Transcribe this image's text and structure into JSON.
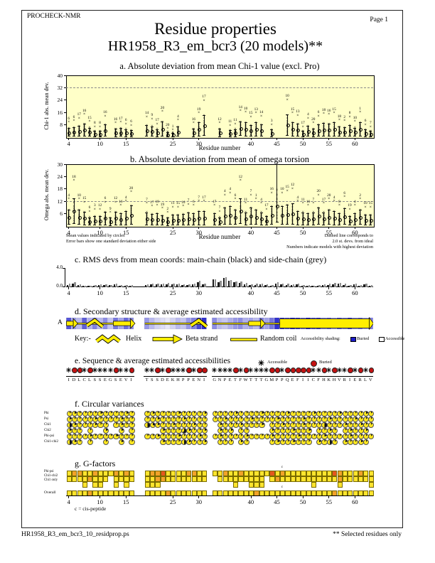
{
  "colors": {
    "plot_bg": "#ffffc8",
    "dashed_line": "#8a8a8a",
    "buried_blue": "#1c1cc8",
    "buried_red": "#c41212",
    "variance_yellow": "#ffe81e",
    "ss_yellow": "#ffee00",
    "g_yellow": "#ffe42e",
    "g_orange": "#f2a22a",
    "g_red": "#e4571f",
    "main_chain": "#1a1a1a",
    "side_chain": "#8f8f8f"
  },
  "page": {
    "header": "PROCHECK-NMR",
    "page_label": "Page  1",
    "title": "Residue properties",
    "subtitle": "HR1958_R3_em_bcr3 (20 models)**",
    "footer_left": "HR1958_R3_em_bcr3_10_residprop.ps",
    "footer_right": "** Selected residues only"
  },
  "axis": {
    "ticks": [
      4,
      10,
      15,
      25,
      30,
      40,
      45,
      50,
      55,
      60
    ],
    "xlabel": "Residue number"
  },
  "segments": [
    {
      "start": 4,
      "seq": "IDLCLSSEGSEVI"
    },
    {
      "start": 20,
      "seq": "TSSDEKHPPENI"
    },
    {
      "start": 33,
      "seq": "GNPETFWTTTGMPPQEFIICFHKHVRIERLV"
    }
  ],
  "chart_data": [
    {
      "id": "a",
      "type": "scatter",
      "title": "a. Absolute deviation from mean Chi-1 value (excl. Pro)",
      "ylabel": "Chi-1 abs. mean dev.",
      "xlabel": "Residue number",
      "ylim": [
        0,
        40
      ],
      "yticks": [
        8,
        16,
        24,
        32,
        40
      ],
      "dashed_y": 32,
      "points_format": [
        "residue",
        "model_with_highest_deviation",
        "peak_abs_mean_dev"
      ],
      "points": [
        [
          4,
          "6",
          9.5
        ],
        [
          5,
          "6",
          10.5
        ],
        [
          6,
          "17",
          12
        ],
        [
          7,
          "16",
          14.5
        ],
        [
          8,
          "15",
          10
        ],
        [
          9,
          "8",
          6.5
        ],
        [
          10,
          "8",
          6.5
        ],
        [
          11,
          "16",
          13.5
        ],
        [
          13,
          "16",
          9
        ],
        [
          14,
          "17",
          9.5
        ],
        [
          15,
          "6",
          8.5
        ],
        [
          16,
          "6",
          7.5
        ],
        [
          20,
          "14",
          13
        ],
        [
          21,
          "9",
          11.5
        ],
        [
          22,
          "17",
          8.5
        ],
        [
          23,
          "20",
          16.5
        ],
        [
          24,
          "20",
          5.5
        ],
        [
          25,
          "1",
          4.5
        ],
        [
          26,
          "4",
          11
        ],
        [
          29,
          "16",
          9
        ],
        [
          30,
          "19",
          15.5
        ],
        [
          31,
          "17",
          23.5
        ],
        [
          34,
          "12",
          9
        ],
        [
          36,
          "11",
          7.5
        ],
        [
          37,
          "11",
          8.5
        ],
        [
          38,
          "14",
          17
        ],
        [
          39,
          "10",
          16
        ],
        [
          40,
          "15",
          13
        ],
        [
          41,
          "13",
          15.5
        ],
        [
          42,
          "14",
          13.5
        ],
        [
          44,
          "3",
          8
        ],
        [
          47,
          "10",
          24
        ],
        [
          48,
          "15",
          15.5
        ],
        [
          49,
          "13",
          14
        ],
        [
          50,
          "17",
          6.5
        ],
        [
          51,
          "4",
          12
        ],
        [
          52,
          "20",
          9
        ],
        [
          53,
          "6",
          13.5
        ],
        [
          54,
          "18",
          15
        ],
        [
          55,
          "16",
          14.5
        ],
        [
          56,
          "15",
          15.5
        ],
        [
          57,
          "18",
          11
        ],
        [
          58,
          "2",
          10.5
        ],
        [
          59,
          "8",
          13
        ],
        [
          60,
          "10",
          10
        ],
        [
          61,
          "1",
          16
        ],
        [
          62,
          "6",
          8
        ],
        [
          63,
          "7",
          6.5
        ]
      ]
    },
    {
      "id": "b",
      "type": "scatter",
      "title": "b. Absolute deviation from mean of omega torsion",
      "ylabel": "Omega abs. mean dev.",
      "xlabel": "Residue number",
      "ylim": [
        0,
        30
      ],
      "yticks": [
        6,
        12,
        18,
        24,
        30
      ],
      "dashed_y": 12,
      "points": [
        [
          4,
          "4",
          13
        ],
        [
          5,
          "18",
          22
        ],
        [
          6,
          "10",
          13
        ],
        [
          7,
          "15",
          11.5
        ],
        [
          8,
          "6",
          7
        ],
        [
          9,
          "3",
          8
        ],
        [
          10,
          "12",
          8
        ],
        [
          11,
          "6",
          11.5
        ],
        [
          12,
          "9",
          6.5
        ],
        [
          13,
          "12",
          11.5
        ],
        [
          14,
          "16",
          10
        ],
        [
          15,
          "4",
          12
        ],
        [
          16,
          "20",
          16.5
        ],
        [
          20,
          "7",
          11
        ],
        [
          21,
          "17",
          9.5
        ],
        [
          22,
          "18",
          10
        ],
        [
          23,
          "19",
          8.5
        ],
        [
          24,
          "2",
          6.5
        ],
        [
          25,
          "11",
          9
        ],
        [
          26,
          "15",
          9
        ],
        [
          27,
          "16",
          9.5
        ],
        [
          28,
          "7",
          10.5
        ],
        [
          29,
          "6",
          10
        ],
        [
          30,
          "7",
          12
        ],
        [
          31,
          "17",
          12
        ],
        [
          33,
          "17",
          10
        ],
        [
          34,
          "7",
          7
        ],
        [
          35,
          "4",
          15
        ],
        [
          36,
          "4",
          16
        ],
        [
          37,
          "6",
          13
        ],
        [
          38,
          "12",
          22
        ],
        [
          39,
          "11",
          11
        ],
        [
          40,
          "7",
          15
        ],
        [
          41,
          "1",
          13
        ],
        [
          42,
          "4",
          11
        ],
        [
          43,
          "17",
          8
        ],
        [
          44,
          "16",
          16
        ],
        [
          45,
          "",
          30
        ],
        [
          46,
          "10",
          16
        ],
        [
          47,
          "15",
          17
        ],
        [
          48,
          "12",
          18
        ],
        [
          49,
          "4",
          12
        ],
        [
          50,
          "11",
          11
        ],
        [
          51,
          "16",
          10
        ],
        [
          52,
          "7",
          11
        ],
        [
          53,
          "20",
          15
        ],
        [
          54,
          "17",
          11
        ],
        [
          55,
          "20",
          13
        ],
        [
          56,
          "4",
          12
        ],
        [
          57,
          "8",
          10
        ],
        [
          58,
          "6",
          14
        ],
        [
          59,
          "19",
          8
        ],
        [
          60,
          "4",
          10
        ],
        [
          61,
          "2",
          13
        ],
        [
          62,
          "10",
          9
        ],
        [
          63,
          "15",
          9
        ]
      ],
      "notes_left": [
        "Mean values indicated by circles",
        "Error bars show one standard deviation either side"
      ],
      "notes_right": [
        "Dashed line corresponds to",
        "2.0 st. devs. from ideal",
        "Numbers indicate models with highest deviation"
      ]
    },
    {
      "id": "c",
      "type": "bar",
      "title": "c. RMS devs from mean coords: main-chain (black) and side-chain (grey)",
      "ylim": [
        0,
        4
      ],
      "ytick_top": "4.0",
      "ytick_bottom": "0.0",
      "main": [
        [
          0.5,
          0.8,
          0.5,
          0.3,
          0.25,
          0.3,
          0.45,
          0.5,
          0.4,
          0.55,
          0.35,
          0.3,
          0.35
        ],
        [
          0.5,
          0.6,
          0.55,
          0.6,
          0.65,
          0.55,
          0.6,
          0.5,
          0.45,
          0.55,
          1.0,
          0.55
        ],
        [
          1.6,
          1.0,
          1.9,
          1.3,
          1.05,
          0.95,
          0.65,
          0.45,
          0.5,
          0.6,
          0.4,
          0.35,
          0.8,
          0.6,
          0.5,
          0.45,
          0.6,
          0.35,
          0.3,
          0.28,
          0.35,
          0.45,
          0.5,
          0.6,
          0.7,
          0.5,
          0.3,
          0.6,
          0.3,
          0.55,
          0.3
        ]
      ],
      "side": [
        [
          0.7,
          1.0,
          0.6,
          0.35,
          0.3,
          0.45,
          0.6,
          0.65,
          0.5,
          0.7,
          0.5,
          0.4,
          0.5
        ],
        [
          0.65,
          0.75,
          0.7,
          0.75,
          0.85,
          0.7,
          0.75,
          0.65,
          0.55,
          0.7,
          1.3,
          0.7
        ],
        [
          1.6,
          1.3,
          2.1,
          1.5,
          1.25,
          1.15,
          0.85,
          0.55,
          0.7,
          0.8,
          0.55,
          0.45,
          1.0,
          0.8,
          0.7,
          0.6,
          0.8,
          0.45,
          0.4,
          0.35,
          0.5,
          0.65,
          0.7,
          0.85,
          0.95,
          0.7,
          0.45,
          0.8,
          0.45,
          0.75,
          0.45
        ]
      ]
    },
    {
      "id": "d",
      "type": "secondary-structure",
      "title": "d. Secondary structure & average estimated accessibility",
      "chain_label": "A",
      "key_label": "Key:-",
      "helix_label": "Helix",
      "strand_label": "Beta strand",
      "coil_label": "Random coil",
      "shading_label": "Accessibility shading:",
      "buried_label": "Buried",
      "accessible_label": "Accessible",
      "helices": [
        [
          8,
          10
        ],
        [
          29,
          31
        ]
      ],
      "strands": [
        [
          4,
          5
        ],
        [
          13,
          16
        ],
        [
          40,
          42
        ]
      ],
      "thick_strand": [
        46,
        63
      ],
      "access": [
        [
          0.75,
          0.45,
          0.3,
          0.7,
          0.35,
          0.55,
          0.3,
          0.5,
          0.25,
          0.6,
          0.4,
          0.65,
          0.5
        ],
        [
          0.45,
          0.3,
          0.2,
          0.15,
          0.1,
          0.2,
          0.3,
          0.25,
          0.45,
          0.55,
          0.8,
          0.9
        ],
        [
          0.5,
          0.3,
          0.25,
          0.35,
          0.45,
          0.5,
          0.35,
          0.4,
          0.3,
          0.55,
          0.4,
          0.6,
          0.9,
          0.85,
          0.7,
          0.9,
          0.8,
          0.6,
          0.9,
          0.7,
          0.8,
          0.5,
          0.65,
          0.4,
          0.7,
          0.5,
          0.8,
          0.45,
          0.6,
          0.35,
          0.55
        ]
      ]
    },
    {
      "id": "e",
      "type": "sequence",
      "title": "e. Sequence & average estimated accessibilities",
      "legend_accessible": "Accessible",
      "legend_buried": "Buried",
      "flags": [
        "abbabaaaabaab",
        "aababaaababb",
        "aaaababaaaabbabbbbbaababaababab"
      ]
    },
    {
      "id": "f",
      "type": "circular-variance",
      "title": "f. Circular variances",
      "rows": [
        {
          "label": "Phi",
          "vals": [
            "1211112111121",
            "121111211112",
            "1111211112111121111211112111121"
          ]
        },
        {
          "label": "Psi",
          "vals": [
            "2111121111211",
            "112111121111",
            "1121111211112111121111211112111"
          ]
        },
        {
          "label": "Chi1",
          "vals": [
            "52111211-1211",
            "532112111211",
            "-211121112-11211121115111211211"
          ]
        },
        {
          "label": "Chi2",
          "vals": [
            "211-1--2--2-1",
            "---211162112",
            "-212-11----21112112-1121-12112-"
          ]
        },
        {
          "label": "Phi-psi",
          "vals": [
            "1111211112111",
            "112111211121",
            "1211112111121111211112111121111"
          ]
        },
        {
          "label": "Chi1-chi2",
          "vals": [
            "521-1--1--2-1",
            "---211152112",
            "-111-21----12112111-2151-21121-"
          ]
        }
      ]
    },
    {
      "id": "g",
      "type": "g-factors",
      "title": "g. G-factors",
      "rows": [
        {
          "label": "Phi-psi",
          "vals": [
            "yooyyoyyyoyoy",
            "yooryyyyooyy",
            "yyoyyoyyyyyryoyyyyyyyyyroyyyoyy"
          ]
        },
        {
          "label": "Chi1-chi2",
          "vals": [
            "yyyyoyyy-yyyy",
            "yyooyyyyyyyy",
            "-yyyyyyyyy-yoyyyyyyyyyyyoyyyyyy"
          ]
        },
        {
          "label": "Chi1 only",
          "vals": [
            "---y-yy--y-y-",
            "yyy---------",
            "----y--yyy---------y----y-----y"
          ]
        }
      ],
      "overall": {
        "label": "Overall",
        "vals": [
          "yyyyoyyyyyyyy",
          "yyyyoyyyyyyy",
          "yyyyyyyyoyyyyyyyyyyyyyyoyyyyyyy"
        ]
      },
      "cis_residue": 46,
      "cis_label": "c",
      "note": "c = cis-peptide"
    }
  ]
}
